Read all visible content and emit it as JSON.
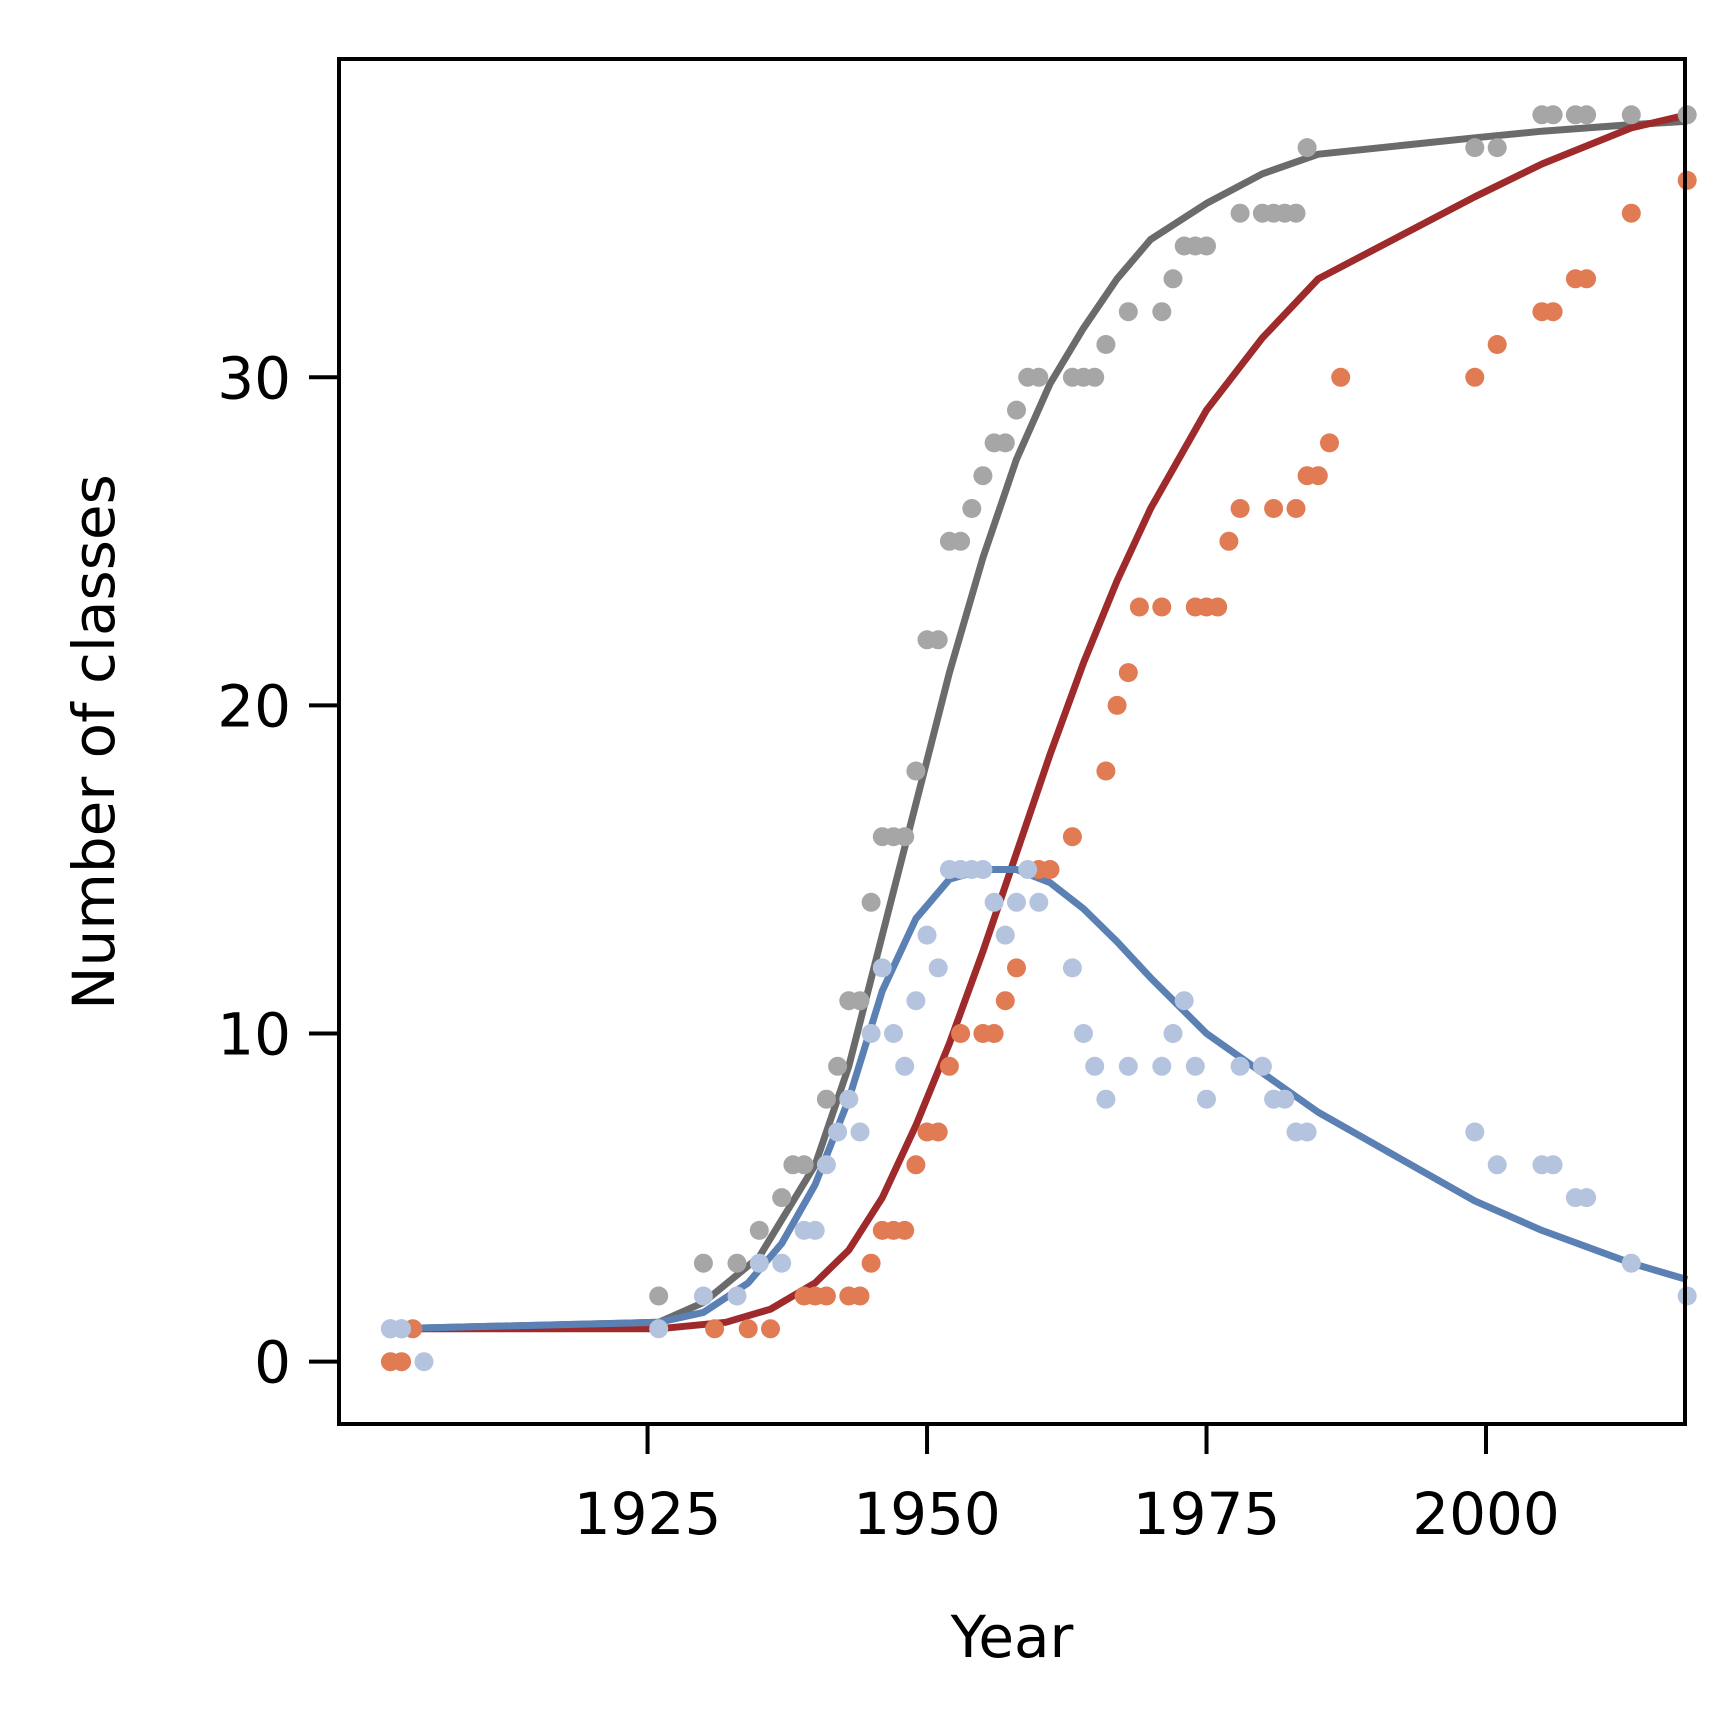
{
  "chart_data": {
    "type": "scatter",
    "xlabel": "Year",
    "ylabel": "Number of classes",
    "xlim": [
      1897.4,
      2017.8
    ],
    "ylim": [
      -1.9,
      39.7
    ],
    "xticks": [
      1925,
      1950,
      1975,
      2000
    ],
    "yticks": [
      0,
      10,
      20,
      30
    ],
    "grid": false,
    "legend": "none",
    "series": [
      {
        "kind": "points",
        "color": "#a6a6a6",
        "points": [
          [
            1902,
            1
          ],
          [
            1903,
            1
          ],
          [
            1926,
            2
          ],
          [
            1930,
            3
          ],
          [
            1933,
            3
          ],
          [
            1935,
            4
          ],
          [
            1937,
            5
          ],
          [
            1938,
            6
          ],
          [
            1939,
            6
          ],
          [
            1941,
            8
          ],
          [
            1942,
            9
          ],
          [
            1943,
            11
          ],
          [
            1944,
            11
          ],
          [
            1945,
            14
          ],
          [
            1946,
            16
          ],
          [
            1947,
            16
          ],
          [
            1948,
            16
          ],
          [
            1949,
            18
          ],
          [
            1950,
            22
          ],
          [
            1951,
            22
          ],
          [
            1952,
            25
          ],
          [
            1953,
            25
          ],
          [
            1954,
            26
          ],
          [
            1955,
            27
          ],
          [
            1956,
            28
          ],
          [
            1957,
            28
          ],
          [
            1958,
            29
          ],
          [
            1959,
            30
          ],
          [
            1960,
            30
          ],
          [
            1963,
            30
          ],
          [
            1964,
            30
          ],
          [
            1965,
            30
          ],
          [
            1966,
            31
          ],
          [
            1968,
            32
          ],
          [
            1971,
            32
          ],
          [
            1972,
            33
          ],
          [
            1973,
            34
          ],
          [
            1974,
            34
          ],
          [
            1975,
            34
          ],
          [
            1978,
            35
          ],
          [
            1980,
            35
          ],
          [
            1981,
            35
          ],
          [
            1982,
            35
          ],
          [
            1983,
            35
          ],
          [
            1984,
            37
          ],
          [
            1999,
            37
          ],
          [
            2001,
            37
          ],
          [
            2005,
            38
          ],
          [
            2006,
            38
          ],
          [
            2008,
            38
          ],
          [
            2009,
            38
          ],
          [
            2013,
            38
          ],
          [
            2018,
            38
          ]
        ]
      },
      {
        "kind": "points",
        "color": "#e07b54",
        "points": [
          [
            1902,
            0
          ],
          [
            1903,
            0
          ],
          [
            1904,
            1
          ],
          [
            1931,
            1
          ],
          [
            1934,
            1
          ],
          [
            1936,
            1
          ],
          [
            1939,
            2
          ],
          [
            1940,
            2
          ],
          [
            1941,
            2
          ],
          [
            1943,
            2
          ],
          [
            1944,
            2
          ],
          [
            1945,
            3
          ],
          [
            1946,
            4
          ],
          [
            1947,
            4
          ],
          [
            1948,
            4
          ],
          [
            1949,
            6
          ],
          [
            1950,
            7
          ],
          [
            1951,
            7
          ],
          [
            1952,
            9
          ],
          [
            1953,
            10
          ],
          [
            1955,
            10
          ],
          [
            1956,
            10
          ],
          [
            1957,
            11
          ],
          [
            1958,
            12
          ],
          [
            1960,
            15
          ],
          [
            1961,
            15
          ],
          [
            1963,
            16
          ],
          [
            1966,
            18
          ],
          [
            1967,
            20
          ],
          [
            1968,
            21
          ],
          [
            1969,
            23
          ],
          [
            1971,
            23
          ],
          [
            1974,
            23
          ],
          [
            1975,
            23
          ],
          [
            1976,
            23
          ],
          [
            1977,
            25
          ],
          [
            1978,
            26
          ],
          [
            1981,
            26
          ],
          [
            1983,
            26
          ],
          [
            1984,
            27
          ],
          [
            1985,
            27
          ],
          [
            1986,
            28
          ],
          [
            1987,
            30
          ],
          [
            1999,
            30
          ],
          [
            2001,
            31
          ],
          [
            2005,
            32
          ],
          [
            2006,
            32
          ],
          [
            2008,
            33
          ],
          [
            2009,
            33
          ],
          [
            2013,
            35
          ],
          [
            2018,
            36
          ]
        ]
      },
      {
        "kind": "points",
        "color": "#b4c4df",
        "points": [
          [
            1902,
            1
          ],
          [
            1903,
            1
          ],
          [
            1905,
            0
          ],
          [
            1926,
            1
          ],
          [
            1930,
            2
          ],
          [
            1933,
            2
          ],
          [
            1935,
            3
          ],
          [
            1937,
            3
          ],
          [
            1939,
            4
          ],
          [
            1940,
            4
          ],
          [
            1941,
            6
          ],
          [
            1942,
            7
          ],
          [
            1943,
            8
          ],
          [
            1944,
            7
          ],
          [
            1945,
            10
          ],
          [
            1946,
            12
          ],
          [
            1947,
            10
          ],
          [
            1948,
            9
          ],
          [
            1949,
            11
          ],
          [
            1950,
            13
          ],
          [
            1951,
            12
          ],
          [
            1952,
            15
          ],
          [
            1953,
            15
          ],
          [
            1954,
            15
          ],
          [
            1955,
            15
          ],
          [
            1956,
            14
          ],
          [
            1957,
            13
          ],
          [
            1958,
            14
          ],
          [
            1959,
            15
          ],
          [
            1960,
            14
          ],
          [
            1963,
            12
          ],
          [
            1964,
            10
          ],
          [
            1965,
            9
          ],
          [
            1966,
            8
          ],
          [
            1968,
            9
          ],
          [
            1971,
            9
          ],
          [
            1972,
            10
          ],
          [
            1973,
            11
          ],
          [
            1974,
            9
          ],
          [
            1975,
            8
          ],
          [
            1978,
            9
          ],
          [
            1980,
            9
          ],
          [
            1981,
            8
          ],
          [
            1982,
            8
          ],
          [
            1983,
            7
          ],
          [
            1984,
            7
          ],
          [
            1999,
            7
          ],
          [
            2001,
            6
          ],
          [
            2005,
            6
          ],
          [
            2006,
            6
          ],
          [
            2008,
            5
          ],
          [
            2009,
            5
          ],
          [
            2013,
            3
          ],
          [
            2018,
            2
          ]
        ]
      },
      {
        "kind": "line",
        "color": "#6b6b6b",
        "points": [
          [
            1902,
            1
          ],
          [
            1926,
            1.2
          ],
          [
            1930,
            1.8
          ],
          [
            1935,
            3.2
          ],
          [
            1940,
            6
          ],
          [
            1943,
            9
          ],
          [
            1946,
            13
          ],
          [
            1949,
            17
          ],
          [
            1952,
            21
          ],
          [
            1955,
            24.5
          ],
          [
            1958,
            27.5
          ],
          [
            1961,
            29.8
          ],
          [
            1964,
            31.5
          ],
          [
            1967,
            33
          ],
          [
            1970,
            34.2
          ],
          [
            1975,
            35.3
          ],
          [
            1980,
            36.2
          ],
          [
            1985,
            36.8
          ],
          [
            1999,
            37.3
          ],
          [
            2005,
            37.5
          ],
          [
            2013,
            37.7
          ],
          [
            2018,
            37.8
          ]
        ]
      },
      {
        "kind": "line",
        "color": "#9e2a2b",
        "points": [
          [
            1902,
            1
          ],
          [
            1926,
            1
          ],
          [
            1932,
            1.2
          ],
          [
            1936,
            1.6
          ],
          [
            1940,
            2.4
          ],
          [
            1943,
            3.4
          ],
          [
            1946,
            5
          ],
          [
            1949,
            7.2
          ],
          [
            1952,
            9.7
          ],
          [
            1955,
            12.5
          ],
          [
            1958,
            15.5
          ],
          [
            1961,
            18.5
          ],
          [
            1964,
            21.3
          ],
          [
            1967,
            23.8
          ],
          [
            1970,
            26
          ],
          [
            1975,
            29
          ],
          [
            1980,
            31.2
          ],
          [
            1985,
            33
          ],
          [
            1999,
            35.5
          ],
          [
            2005,
            36.5
          ],
          [
            2013,
            37.6
          ],
          [
            2018,
            38
          ]
        ]
      },
      {
        "kind": "line",
        "color": "#5b80b4",
        "points": [
          [
            1902,
            1
          ],
          [
            1926,
            1.2
          ],
          [
            1930,
            1.5
          ],
          [
            1934,
            2.4
          ],
          [
            1937,
            3.6
          ],
          [
            1940,
            5.4
          ],
          [
            1943,
            8
          ],
          [
            1946,
            11.3
          ],
          [
            1949,
            13.5
          ],
          [
            1952,
            14.7
          ],
          [
            1955,
            15
          ],
          [
            1958,
            15
          ],
          [
            1961,
            14.6
          ],
          [
            1964,
            13.8
          ],
          [
            1967,
            12.8
          ],
          [
            1970,
            11.7
          ],
          [
            1975,
            10
          ],
          [
            1980,
            8.8
          ],
          [
            1985,
            7.6
          ],
          [
            1999,
            4.9
          ],
          [
            2005,
            4
          ],
          [
            2013,
            3
          ],
          [
            2018,
            2.5
          ]
        ]
      }
    ]
  }
}
